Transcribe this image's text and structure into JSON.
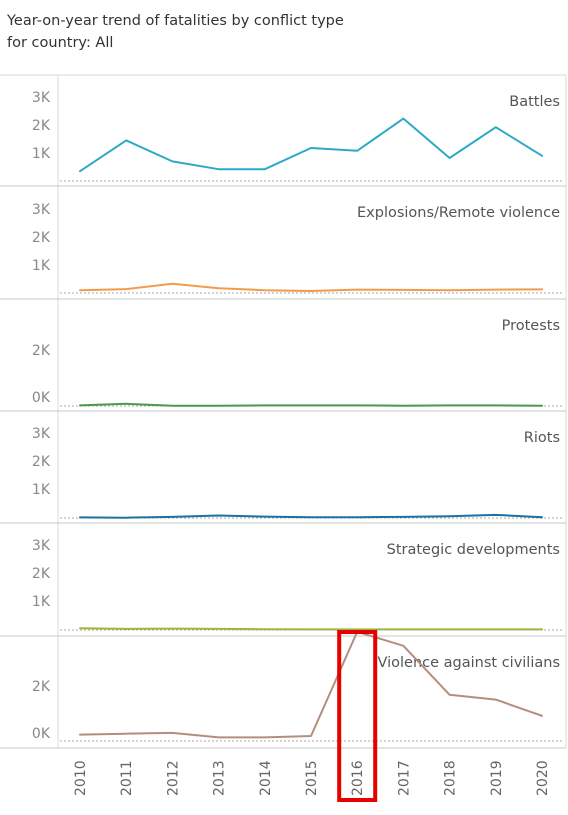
{
  "title": {
    "line1": "Year-on-year trend of fatalities by conflict type",
    "line2": "for country: All"
  },
  "chart_data": {
    "type": "line",
    "x": [
      "2010",
      "2011",
      "2012",
      "2013",
      "2014",
      "2015",
      "2016",
      "2017",
      "2018",
      "2019",
      "2020"
    ],
    "xlabel": "",
    "ylabel": "",
    "grid": false,
    "highlight": {
      "x": "2016",
      "color": "#e60000"
    },
    "panels": [
      {
        "name": "Battles",
        "color": "#2ea8c9",
        "yticks": [
          "3K",
          "2K",
          "1K"
        ],
        "values": [
          350,
          1450,
          700,
          420,
          420,
          1180,
          1080,
          2230,
          820,
          1920,
          900
        ]
      },
      {
        "name": "Explosions/Remote violence",
        "color": "#f39b4c",
        "yticks": [
          "3K",
          "2K",
          "1K"
        ],
        "values": [
          100,
          140,
          330,
          170,
          100,
          70,
          120,
          110,
          100,
          120,
          130
        ]
      },
      {
        "name": "Protests",
        "color": "#4a9a4a",
        "yticks": [
          "2K",
          "0K"
        ],
        "values": [
          20,
          80,
          10,
          10,
          20,
          20,
          20,
          10,
          20,
          20,
          10
        ]
      },
      {
        "name": "Riots",
        "color": "#1f6fa5",
        "yticks": [
          "3K",
          "2K",
          "1K"
        ],
        "values": [
          20,
          10,
          40,
          90,
          50,
          30,
          30,
          40,
          60,
          110,
          30
        ]
      },
      {
        "name": "Strategic developments",
        "color": "#9ab83a",
        "yticks": [
          "3K",
          "2K",
          "1K"
        ],
        "values": [
          60,
          40,
          50,
          40,
          30,
          20,
          20,
          20,
          20,
          20,
          20
        ]
      },
      {
        "name": "Violence against civilians",
        "color": "#b48e7c",
        "yticks": [
          "2K",
          "0K"
        ],
        "values": [
          230,
          260,
          290,
          130,
          130,
          180,
          3900,
          3400,
          1650,
          1480,
          900
        ]
      }
    ]
  }
}
